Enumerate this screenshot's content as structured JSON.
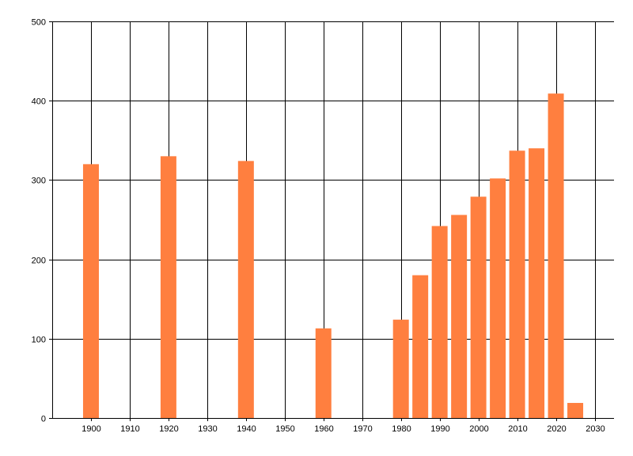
{
  "chart_data": {
    "type": "bar",
    "x": [
      1900,
      1920,
      1940,
      1960,
      1980,
      1985,
      1990,
      1995,
      2000,
      2005,
      2010,
      2015,
      2020,
      2025
    ],
    "values": [
      320,
      330,
      324,
      113,
      124,
      180,
      242,
      256,
      279,
      302,
      337,
      340,
      409,
      19
    ],
    "xlim": [
      1890,
      2035
    ],
    "ylim": [
      0,
      500
    ],
    "x_ticks": [
      "1900",
      "1910",
      "1920",
      "1930",
      "1940",
      "1950",
      "1960",
      "1970",
      "1980",
      "1990",
      "2000",
      "2010",
      "2020",
      "2030"
    ],
    "y_ticks": [
      "0",
      "100",
      "200",
      "300",
      "400",
      "500"
    ],
    "grid": true,
    "title": "",
    "xlabel": "",
    "ylabel": "",
    "bar_color": "#ff7f3f",
    "grid_color": "#000000"
  }
}
